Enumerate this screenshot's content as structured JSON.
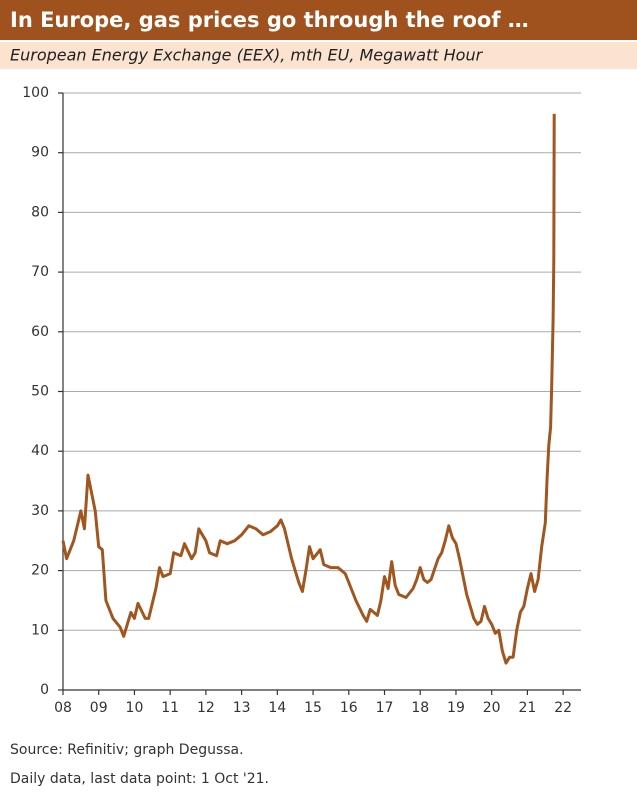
{
  "chart_data": {
    "type": "line",
    "title": "In Europe, gas prices go through the roof …",
    "subtitle": "European Energy Exchange (EEX), mth EU, Megawatt Hour",
    "source": "Source: Refinitiv; graph Degussa.",
    "note": "Daily data, last data point: 1 Oct '21.",
    "x": [
      2008.0,
      2008.1,
      2008.3,
      2008.5,
      2008.6,
      2008.7,
      2008.8,
      2008.9,
      2009.0,
      2009.1,
      2009.2,
      2009.4,
      2009.6,
      2009.7,
      2009.8,
      2009.9,
      2010.0,
      2010.1,
      2010.3,
      2010.4,
      2010.6,
      2010.7,
      2010.8,
      2011.0,
      2011.1,
      2011.3,
      2011.4,
      2011.6,
      2011.7,
      2011.8,
      2012.0,
      2012.1,
      2012.3,
      2012.4,
      2012.6,
      2012.8,
      2013.0,
      2013.2,
      2013.4,
      2013.6,
      2013.8,
      2014.0,
      2014.1,
      2014.2,
      2014.4,
      2014.6,
      2014.7,
      2014.8,
      2014.9,
      2015.0,
      2015.2,
      2015.3,
      2015.5,
      2015.7,
      2015.9,
      2016.0,
      2016.2,
      2016.4,
      2016.5,
      2016.6,
      2016.8,
      2016.9,
      2017.0,
      2017.1,
      2017.2,
      2017.3,
      2017.4,
      2017.6,
      2017.8,
      2017.9,
      2018.0,
      2018.1,
      2018.2,
      2018.3,
      2018.5,
      2018.6,
      2018.7,
      2018.8,
      2018.9,
      2019.0,
      2019.1,
      2019.2,
      2019.3,
      2019.4,
      2019.5,
      2019.6,
      2019.7,
      2019.8,
      2019.9,
      2020.0,
      2020.1,
      2020.2,
      2020.3,
      2020.4,
      2020.5,
      2020.6,
      2020.7,
      2020.8,
      2020.9,
      2021.0,
      2021.1,
      2021.2,
      2021.3,
      2021.4,
      2021.5,
      2021.55,
      2021.6,
      2021.65,
      2021.68,
      2021.72,
      2021.74,
      2021.75
    ],
    "series": [
      {
        "name": "EEX gas price",
        "color": "#a0561e",
        "values": [
          25,
          22,
          25,
          30,
          27,
          36,
          33,
          30,
          24,
          23.5,
          15,
          12,
          10.5,
          9,
          11,
          13,
          12,
          14.5,
          12,
          12,
          17,
          20.5,
          19,
          19.5,
          23,
          22.5,
          24.5,
          22,
          23,
          27,
          25,
          23,
          22.5,
          25,
          24.5,
          25,
          26,
          27.5,
          27,
          26,
          26.5,
          27.5,
          28.5,
          27,
          22,
          18,
          16.5,
          20,
          24,
          22,
          23.5,
          21,
          20.5,
          20.5,
          19.5,
          18,
          15,
          12.5,
          11.5,
          13.5,
          12.5,
          15,
          19,
          17,
          21.5,
          17.5,
          16,
          15.5,
          17,
          18.5,
          20.5,
          18.5,
          18,
          18.5,
          22,
          23,
          25,
          27.5,
          25.5,
          24.5,
          22,
          19,
          16,
          14,
          12,
          11,
          11.5,
          14,
          12,
          11,
          9.5,
          10,
          6.5,
          4.5,
          5.5,
          5.5,
          10,
          13,
          14,
          17,
          19.5,
          16.5,
          18.5,
          24,
          28,
          35.5,
          41,
          44,
          51,
          62,
          72,
          96.5
        ]
      }
    ],
    "xlim": [
      2008,
      2022.5
    ],
    "xticks": [
      {
        "value": 2008,
        "label": "08"
      },
      {
        "value": 2009,
        "label": "09"
      },
      {
        "value": 2010,
        "label": "10"
      },
      {
        "value": 2011,
        "label": "11"
      },
      {
        "value": 2012,
        "label": "12"
      },
      {
        "value": 2013,
        "label": "13"
      },
      {
        "value": 2014,
        "label": "14"
      },
      {
        "value": 2015,
        "label": "15"
      },
      {
        "value": 2016,
        "label": "16"
      },
      {
        "value": 2017,
        "label": "17"
      },
      {
        "value": 2018,
        "label": "18"
      },
      {
        "value": 2019,
        "label": "19"
      },
      {
        "value": 2020,
        "label": "20"
      },
      {
        "value": 2021,
        "label": "21"
      },
      {
        "value": 2022,
        "label": "22"
      }
    ],
    "ylim": [
      0,
      100
    ],
    "yticks": [
      0,
      10,
      20,
      30,
      40,
      50,
      60,
      70,
      80,
      90,
      100
    ],
    "grid": true
  }
}
